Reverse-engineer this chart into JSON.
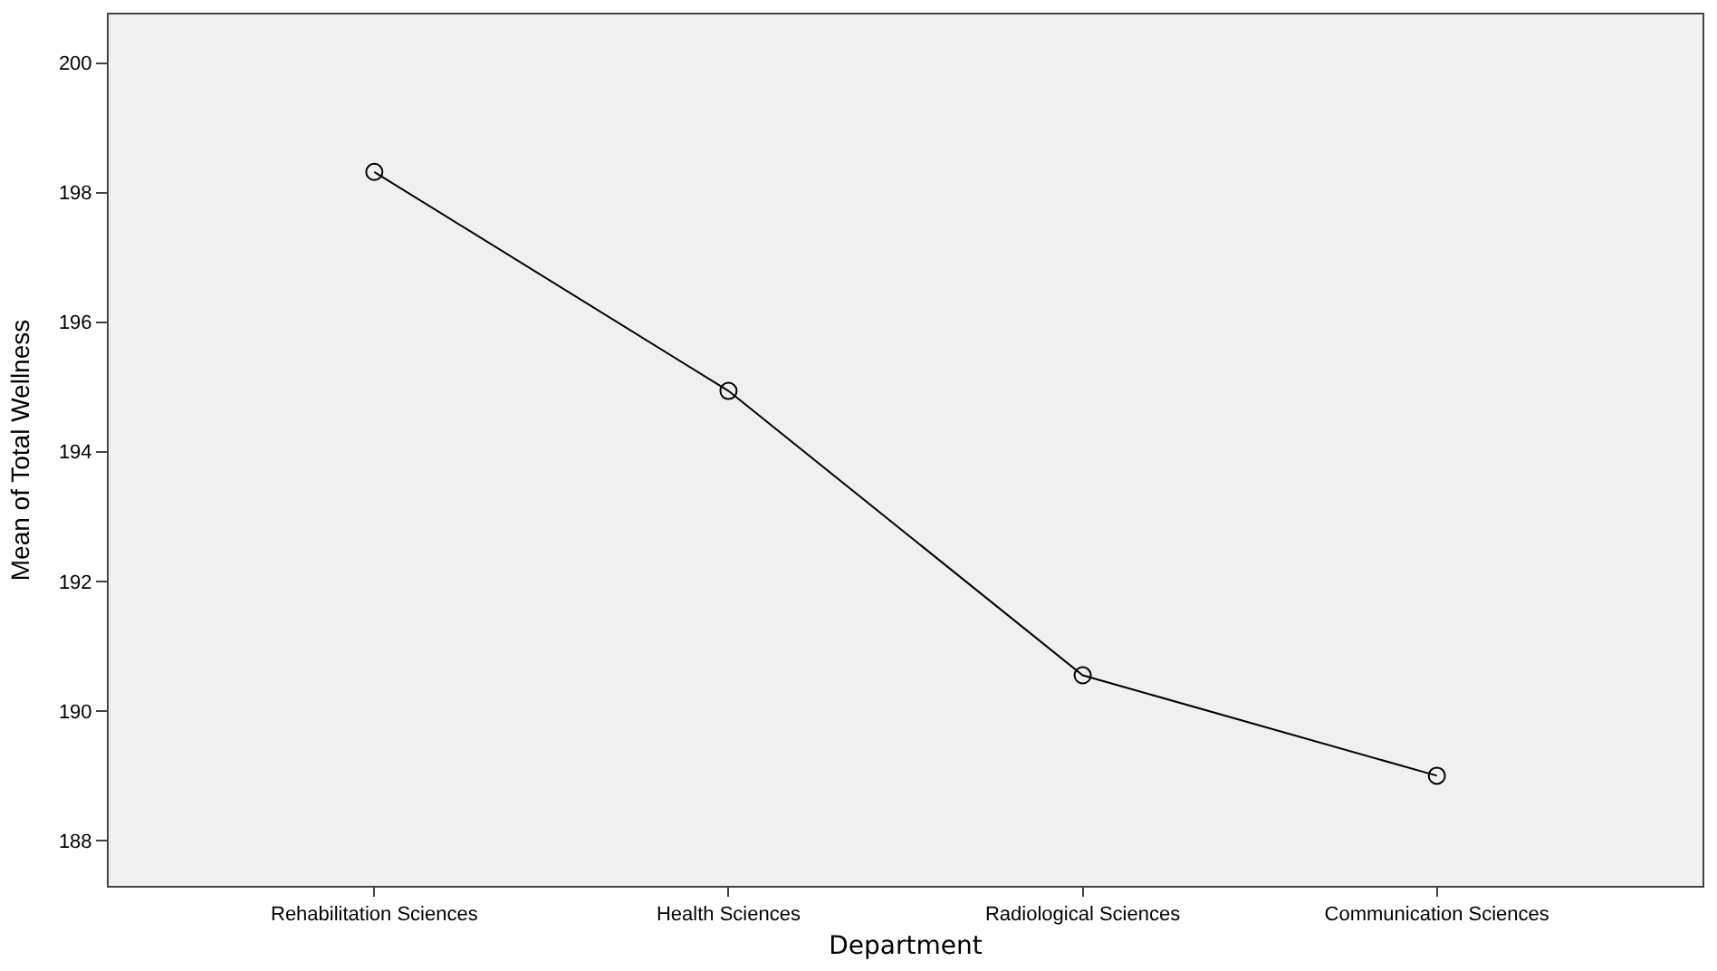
{
  "chart_data": {
    "type": "line",
    "xlabel": "Department",
    "ylabel": "Mean of Total Wellness",
    "categories": [
      "Rehabilitation Sciences",
      "Health Sciences",
      "Radiological Sciences",
      "Communication Sciences"
    ],
    "series": [
      {
        "color": "#000000",
        "values": [
          198.32,
          194.94,
          190.55,
          189.0
        ]
      }
    ],
    "ylim": [
      187.3,
      200.75
    ],
    "yticks": [
      188,
      190,
      192,
      194,
      196,
      198,
      200
    ],
    "grid": false,
    "marker": "circle",
    "line_style": "solid"
  }
}
